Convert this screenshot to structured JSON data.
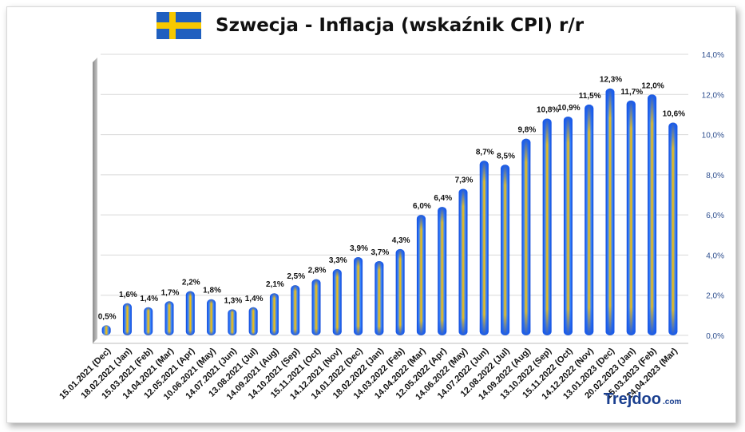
{
  "chart_data": {
    "type": "bar",
    "title": "Szwecja - Inflacja (wskaźnik CPI) r/r",
    "xlabel": "",
    "ylabel": "",
    "ylim": [
      0,
      14
    ],
    "yticks": [
      "0,0%",
      "2,0%",
      "4,0%",
      "6,0%",
      "8,0%",
      "10,0%",
      "12,0%",
      "14,0%"
    ],
    "grid": true,
    "legend": "none",
    "categories": [
      "15.01.2021 (Dec)",
      "18.02.2021 (Jan)",
      "15.03.2021 (Feb)",
      "14.04.2021 (Mar)",
      "12.05.2021 (Apr)",
      "10.06.2021 (May)",
      "14.07.2021 (Jun)",
      "13.08.2021 (Jul)",
      "14.09.2021 (Aug)",
      "14.10.2021 (Sep)",
      "15.11.2021 (Oct)",
      "14.12.2021 (Nov)",
      "14.01.2022 (Dec)",
      "18.02.2022 (Jan)",
      "14.03.2022 (Feb)",
      "14.04.2022 (Mar)",
      "12.05.2022 (Apr)",
      "14.06.2022 (May)",
      "14.07.2022 (Jun)",
      "12.08.2022 (Jul)",
      "14.09.2022 (Aug)",
      "13.10.2022 (Sep)",
      "15.11.2022 (Oct)",
      "14.12.2022 (Nov)",
      "13.01.2023 (Dec)",
      "20.02.2023 (Jan)",
      "15.03.2023 (Feb)",
      "14.04.2023 (Mar)"
    ],
    "values": [
      0.5,
      1.6,
      1.4,
      1.7,
      2.2,
      1.8,
      1.3,
      1.4,
      2.1,
      2.5,
      2.8,
      3.3,
      3.9,
      3.7,
      4.3,
      6.0,
      6.4,
      7.3,
      8.7,
      8.5,
      9.8,
      10.8,
      10.9,
      11.5,
      12.3,
      11.7,
      12.0,
      10.6
    ],
    "data_labels": [
      "0,5%",
      "1,6%",
      "1,4%",
      "1,7%",
      "2,2%",
      "1,8%",
      "1,3%",
      "1,4%",
      "2,1%",
      "2,5%",
      "2,8%",
      "3,3%",
      "3,9%",
      "3,7%",
      "4,3%",
      "6,0%",
      "6,4%",
      "7,3%",
      "8,7%",
      "8,5%",
      "9,8%",
      "10,8%",
      "10,9%",
      "11,5%",
      "12,3%",
      "11,7%",
      "12,0%",
      "10,6%"
    ],
    "colors": {
      "bar_edge": "#1a5ae8",
      "bar_center": "#ffc400",
      "grid": "#d9d9d9",
      "axis_text": "#2e4f8f"
    }
  },
  "watermark": {
    "brand_text": "Trejdoo",
    "domain_text": ".com"
  }
}
